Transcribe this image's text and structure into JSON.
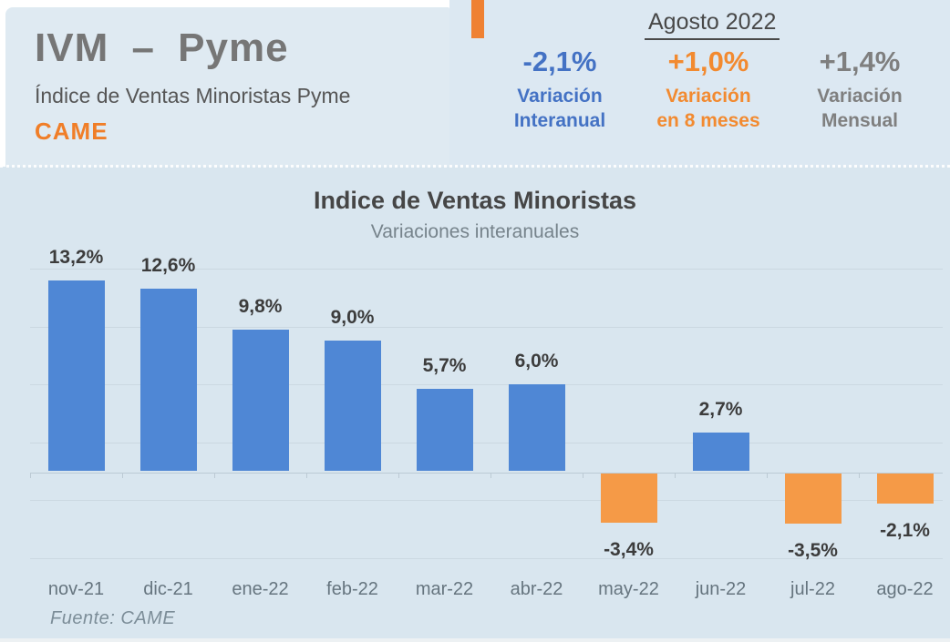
{
  "header": {
    "title": "IVM – Pyme",
    "subtitle": "Índice de Ventas Minoristas Pyme",
    "org": "CAME",
    "period": "Agosto 2022",
    "stats": [
      {
        "value": "-2,1%",
        "label_line1": "Variación",
        "label_line2": "Interanual",
        "color": "#4472c4"
      },
      {
        "value": "+1,0%",
        "label_line1": "Variación",
        "label_line2": "en 8 meses",
        "color": "#f28a30"
      },
      {
        "value": "+1,4%",
        "label_line1": "Variación",
        "label_line2": "Mensual",
        "color": "#7f7f7f"
      }
    ]
  },
  "chart_data": {
    "type": "bar",
    "title": "Indice de Ventas Minoristas",
    "subtitle": "Variaciones interanuales",
    "categories": [
      "nov-21",
      "dic-21",
      "ene-22",
      "feb-22",
      "mar-22",
      "abr-22",
      "may-22",
      "jun-22",
      "jul-22",
      "ago-22"
    ],
    "values": [
      13.2,
      12.6,
      9.8,
      9.0,
      5.7,
      6.0,
      -3.4,
      2.7,
      -3.5,
      -2.1
    ],
    "value_labels": [
      "13,2%",
      "12,6%",
      "9,8%",
      "9,0%",
      "5,7%",
      "6,0%",
      "-3,4%",
      "2,7%",
      "-3,5%",
      "-2,1%"
    ],
    "positive_color": "#4f87d5",
    "negative_color": "#f59a47",
    "gridline_values": [
      14,
      10,
      6,
      2,
      -2,
      -6
    ],
    "ylim": [
      -6.5,
      15.5
    ],
    "grid": true,
    "legend": false,
    "xlabel": "",
    "ylabel": "",
    "source": "Fuente: CAME"
  },
  "accent_color": "#ef8133"
}
